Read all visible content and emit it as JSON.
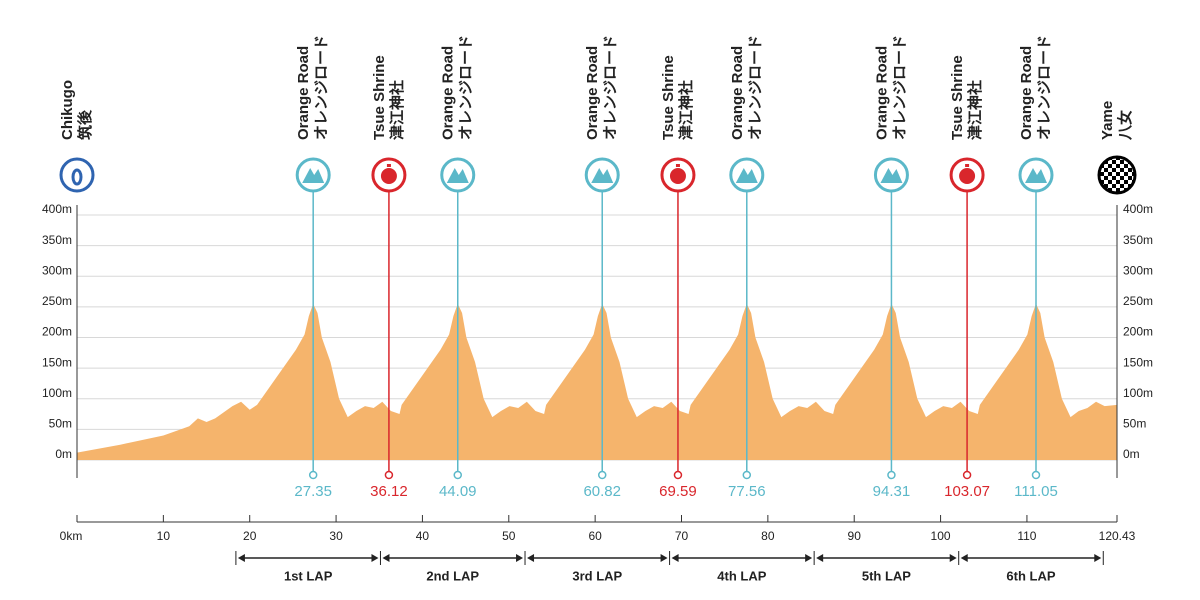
{
  "chart_data": {
    "type": "area",
    "color": "#f5b46c",
    "x": [
      0,
      5,
      10,
      12,
      13,
      14,
      15,
      16,
      17,
      18,
      19,
      20,
      20.85,
      22.35,
      23.35,
      24.35,
      25.35,
      26.35,
      26.85,
      27.35,
      27.85,
      28.35,
      29.35,
      30.35,
      31.35,
      32.35,
      33.35,
      34.35,
      35.35,
      36.35,
      37.35,
      37.59,
      39.09,
      40.09,
      41.09,
      42.09,
      43.09,
      43.59,
      44.09,
      44.59,
      45.09,
      46.09,
      47.09,
      48.09,
      49.09,
      50.09,
      51.09,
      52.09,
      53.09,
      54.09,
      54.32,
      55.82,
      56.82,
      57.82,
      58.82,
      59.82,
      60.32,
      60.82,
      61.32,
      61.82,
      62.82,
      63.82,
      64.82,
      65.82,
      66.82,
      67.82,
      68.82,
      69.82,
      70.82,
      71.06,
      72.56,
      73.56,
      74.56,
      75.56,
      76.56,
      77.06,
      77.56,
      78.06,
      78.56,
      79.56,
      80.56,
      81.56,
      82.56,
      83.56,
      84.56,
      85.56,
      86.56,
      87.56,
      87.81,
      89.31,
      90.31,
      91.31,
      92.31,
      93.31,
      93.81,
      94.31,
      94.81,
      95.31,
      96.31,
      97.31,
      98.31,
      99.31,
      100.31,
      101.31,
      102.31,
      103.31,
      104.31,
      104.55,
      106.05,
      107.05,
      108.05,
      109.05,
      110.05,
      110.55,
      111.05,
      111.55,
      112.05,
      113.05,
      114.05,
      115.05,
      116,
      117,
      118,
      119,
      120.43
    ],
    "values": [
      12,
      25,
      40,
      50,
      55,
      68,
      62,
      68,
      78,
      88,
      95,
      82,
      90,
      120,
      140,
      160,
      180,
      205,
      235,
      255,
      240,
      200,
      160,
      100,
      70,
      80,
      88,
      85,
      95,
      80,
      75,
      90,
      120,
      140,
      160,
      180,
      205,
      235,
      255,
      240,
      200,
      160,
      100,
      70,
      80,
      88,
      85,
      95,
      80,
      75,
      90,
      120,
      140,
      160,
      180,
      205,
      235,
      255,
      240,
      200,
      160,
      100,
      70,
      80,
      88,
      85,
      95,
      80,
      75,
      90,
      120,
      140,
      160,
      180,
      205,
      235,
      255,
      240,
      200,
      160,
      100,
      70,
      80,
      88,
      85,
      95,
      80,
      75,
      90,
      120,
      140,
      160,
      180,
      205,
      235,
      255,
      240,
      200,
      160,
      100,
      70,
      80,
      88,
      85,
      95,
      80,
      75,
      90,
      120,
      140,
      160,
      180,
      205,
      235,
      255,
      240,
      200,
      160,
      100,
      70,
      80,
      85,
      95,
      88,
      90
    ],
    "xlim": [
      0,
      120.43
    ],
    "xticks": [
      {
        "value": 0,
        "label": "0km"
      },
      10,
      20,
      30,
      40,
      50,
      60,
      70,
      80,
      90,
      100,
      110,
      120.43
    ],
    "ylim": [
      0,
      400
    ],
    "yticks": [
      {
        "value": 0,
        "label": "0m"
      },
      {
        "value": 50,
        "label": "50m"
      },
      {
        "value": 100,
        "label": "100m"
      },
      {
        "value": 150,
        "label": "150m"
      },
      {
        "value": 200,
        "label": "200m"
      },
      {
        "value": 250,
        "label": "250m"
      },
      {
        "value": 300,
        "label": "300m"
      },
      {
        "value": 350,
        "label": "350m"
      },
      {
        "value": 400,
        "label": "400m"
      }
    ],
    "grid": true,
    "start": {
      "name": "Chikugo",
      "name_ja": "筑後",
      "color": "#2f64b0"
    },
    "finish": {
      "name": "Yame",
      "name_ja": "八女"
    },
    "markers": [
      {
        "name": "Orange Road",
        "name_ja": "オレンジロード",
        "km": 27.35,
        "color": "#5bb8c9"
      },
      {
        "name": "Tsue Shrine",
        "name_ja": "津江神社",
        "km": 36.12,
        "color": "#d9262c"
      },
      {
        "name": "Orange Road",
        "name_ja": "オレンジロード",
        "km": 44.09,
        "color": "#5bb8c9"
      },
      {
        "name": "Orange Road",
        "name_ja": "オレンジロード",
        "km": 60.82,
        "color": "#5bb8c9"
      },
      {
        "name": "Tsue Shrine",
        "name_ja": "津江神社",
        "km": 69.59,
        "color": "#d9262c"
      },
      {
        "name": "Orange Road",
        "name_ja": "オレンジロード",
        "km": 77.56,
        "color": "#5bb8c9"
      },
      {
        "name": "Orange Road",
        "name_ja": "オレンジロード",
        "km": 94.31,
        "color": "#5bb8c9"
      },
      {
        "name": "Tsue Shrine",
        "name_ja": "津江神社",
        "km": 103.07,
        "color": "#d9262c"
      },
      {
        "name": "Orange Road",
        "name_ja": "オレンジロード",
        "km": 111.05,
        "color": "#5bb8c9"
      }
    ],
    "laps": [
      "1st LAP",
      "2nd LAP",
      "3rd LAP",
      "4th LAP",
      "5th LAP",
      "6th LAP"
    ],
    "lap_bounds": [
      18.4,
      35.14,
      51.88,
      68.62,
      85.36,
      102.1,
      118.84
    ]
  }
}
